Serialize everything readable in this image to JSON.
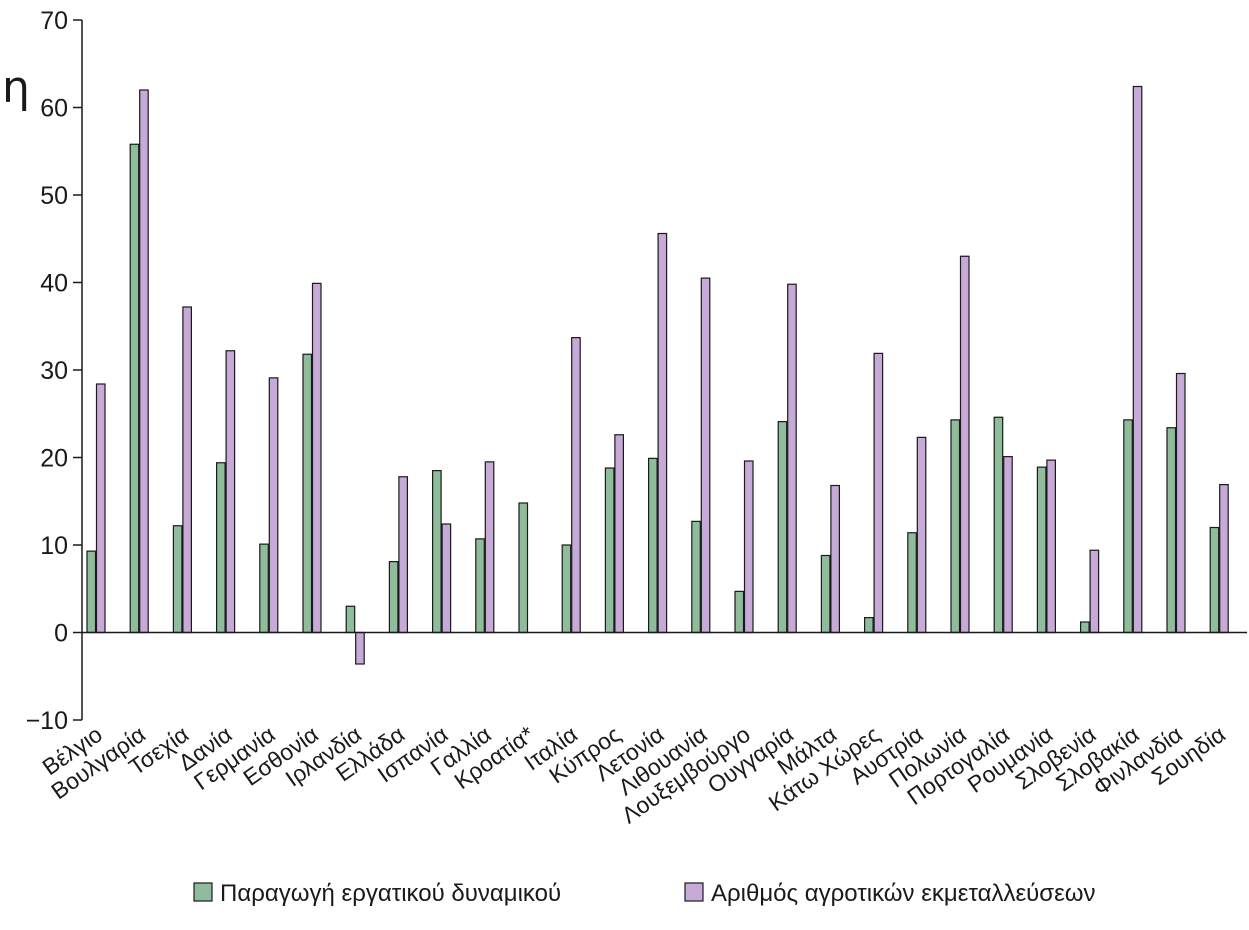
{
  "edge_fragment": "η",
  "chart_data": {
    "type": "bar",
    "title": "",
    "xlabel": "",
    "ylabel": "",
    "ylim": [
      -10,
      70
    ],
    "yticks": [
      -10,
      0,
      10,
      20,
      30,
      40,
      50,
      60,
      70
    ],
    "ytick_labels": [
      "−10",
      "0",
      "10",
      "20",
      "30",
      "40",
      "50",
      "60",
      "70"
    ],
    "grid": false,
    "legend_position": "bottom",
    "colors": {
      "series_1": "#8fbc9a",
      "series_2": "#c8aad8",
      "edge": "#1a1a1a"
    },
    "categories": [
      "Βέλγιο",
      "Βουλγαρία",
      "Τσεχία",
      "Δανία",
      "Γερμανία",
      "Εσθονία",
      "Ιρλανδία",
      "Ελλάδα",
      "Ισπανία",
      "Γαλλία",
      "Κροατία*",
      "Ιταλία",
      "Κύπρος",
      "Λετονία",
      "Λιθουανία",
      "Λουξεμβούργο",
      "Ουγγαρία",
      "Μάλτα",
      "Κάτω Χώρες",
      "Αυστρία",
      "Πολωνία",
      "Πορτογαλία",
      "Ρουμανία",
      "Σλοβενία",
      "Σλοβακία",
      "Φινλανδία",
      "Σουηδία"
    ],
    "series": [
      {
        "name": "Παραγωγή εργατικού δυναμικού",
        "values": [
          9.3,
          55.8,
          12.2,
          19.4,
          10.1,
          31.8,
          3.0,
          8.1,
          18.5,
          10.7,
          14.8,
          10.0,
          18.8,
          19.9,
          12.7,
          4.7,
          24.1,
          8.8,
          1.7,
          11.4,
          24.3,
          24.6,
          18.9,
          1.2,
          24.3,
          23.4,
          12.0
        ]
      },
      {
        "name": "Αριθμός αγροτικών εκμεταλλεύσεων",
        "values": [
          28.4,
          62.0,
          37.2,
          32.2,
          29.1,
          39.9,
          -3.6,
          17.8,
          12.4,
          19.5,
          null,
          33.7,
          22.6,
          45.6,
          40.5,
          19.6,
          39.8,
          16.8,
          31.9,
          22.3,
          43.0,
          20.1,
          19.7,
          9.4,
          62.4,
          29.6,
          16.9
        ]
      }
    ]
  }
}
